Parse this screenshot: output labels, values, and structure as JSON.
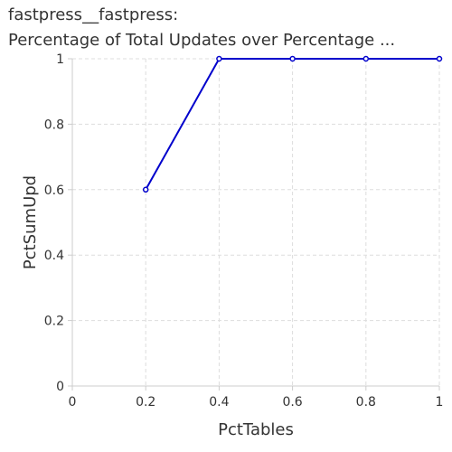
{
  "chart_data": {
    "type": "line",
    "title": "fastpress__fastpress:",
    "subtitle": "Percentage of Total Updates over Percentage ...",
    "xlabel": "PctTables",
    "ylabel": "PctSumUpd",
    "xlim": [
      0,
      1
    ],
    "ylim": [
      0,
      1
    ],
    "xticks": [
      "0",
      "0.2",
      "0.4",
      "0.6",
      "0.8",
      "1"
    ],
    "yticks": [
      "0",
      "0.2",
      "0.4",
      "0.6",
      "0.8",
      "1"
    ],
    "grid": true,
    "series": [
      {
        "x": [
          0.2,
          0.4,
          0.6,
          0.8,
          1.0
        ],
        "y": [
          0.6,
          1.0,
          1.0,
          1.0,
          1.0
        ],
        "color": "#0000cc"
      }
    ]
  }
}
